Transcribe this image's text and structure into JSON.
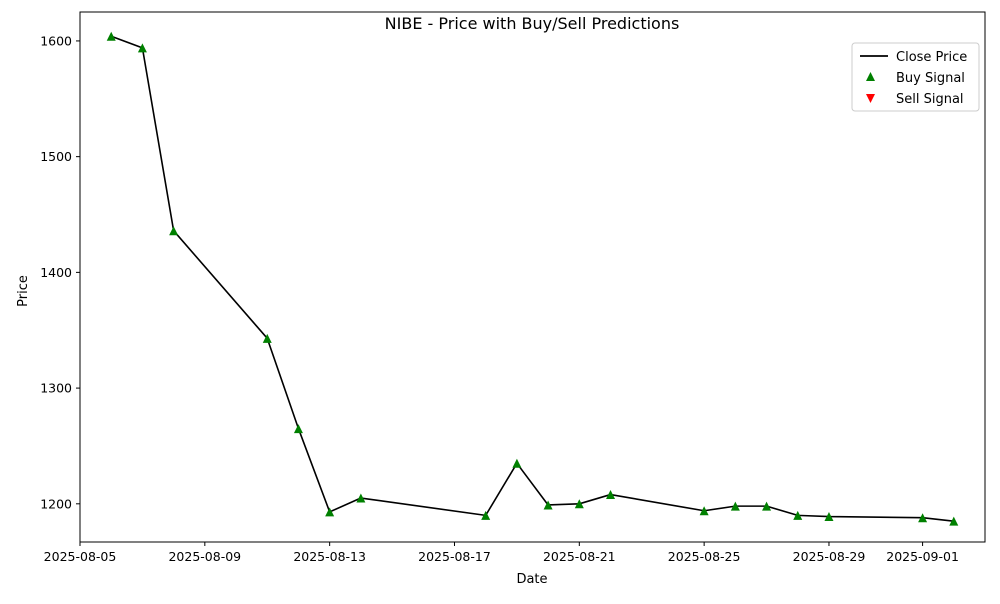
{
  "chart_data": {
    "type": "line",
    "title": "NIBE - Price with Buy/Sell Predictions",
    "xlabel": "Date",
    "ylabel": "Price",
    "xlim": [
      "2025-08-05",
      "2025-09-03"
    ],
    "ylim": [
      1167,
      1625
    ],
    "x_ticks": [
      "2025-08-05",
      "2025-08-09",
      "2025-08-13",
      "2025-08-17",
      "2025-08-21",
      "2025-08-25",
      "2025-08-29",
      "2025-09-01"
    ],
    "y_ticks": [
      1200,
      1300,
      1400,
      1500,
      1600
    ],
    "grid": false,
    "legend_position": "top-right",
    "series": [
      {
        "name": "Close Price",
        "kind": "line",
        "color": "#000000",
        "x": [
          "2025-08-06",
          "2025-08-07",
          "2025-08-08",
          "2025-08-11",
          "2025-08-12",
          "2025-08-13",
          "2025-08-14",
          "2025-08-18",
          "2025-08-19",
          "2025-08-20",
          "2025-08-21",
          "2025-08-22",
          "2025-08-25",
          "2025-08-26",
          "2025-08-27",
          "2025-08-28",
          "2025-08-29",
          "2025-09-01",
          "2025-09-02"
        ],
        "values": [
          1604,
          1594,
          1436,
          1343,
          1265,
          1193,
          1205,
          1190,
          1235,
          1199,
          1200,
          1208,
          1194,
          1198,
          1198,
          1190,
          1189,
          1188,
          1185
        ]
      },
      {
        "name": "Buy Signal",
        "kind": "scatter",
        "marker": "triangle-up",
        "color": "#008000",
        "x": [
          "2025-08-06",
          "2025-08-07",
          "2025-08-08",
          "2025-08-11",
          "2025-08-12",
          "2025-08-13",
          "2025-08-14",
          "2025-08-18",
          "2025-08-19",
          "2025-08-20",
          "2025-08-21",
          "2025-08-22",
          "2025-08-25",
          "2025-08-26",
          "2025-08-27",
          "2025-08-28",
          "2025-08-29",
          "2025-09-01",
          "2025-09-02"
        ],
        "values": [
          1604,
          1594,
          1436,
          1343,
          1265,
          1193,
          1205,
          1190,
          1235,
          1199,
          1200,
          1208,
          1194,
          1198,
          1198,
          1190,
          1189,
          1188,
          1185
        ]
      },
      {
        "name": "Sell Signal",
        "kind": "scatter",
        "marker": "triangle-down",
        "color": "#ff0000",
        "x": [],
        "values": []
      }
    ]
  }
}
